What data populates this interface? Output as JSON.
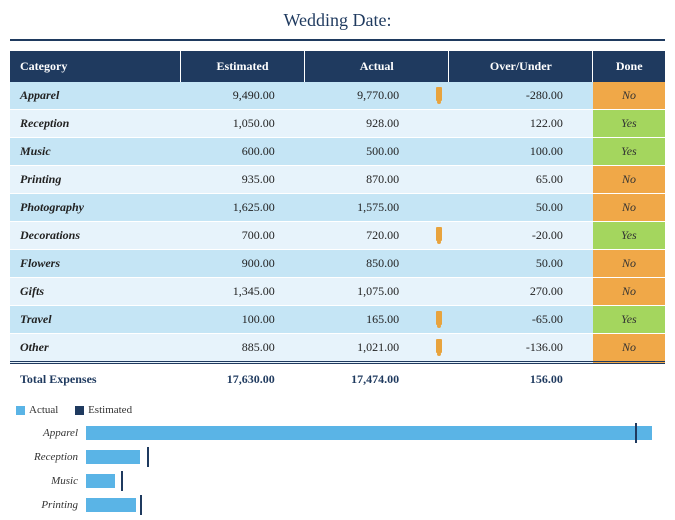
{
  "title": "Wedding Date:",
  "colors": {
    "header_bg": "#1f3a5f",
    "header_text": "#ffffff",
    "row_even": "#c5e5f5",
    "row_odd": "#e7f3fb",
    "done_yes": "#a4d65e",
    "done_no": "#f0a848",
    "rule": "#1f3a5f",
    "bar_actual": "#5ab4e6",
    "bar_estimated": "#1f3a5f",
    "background": "#ffffff",
    "flag": "#e8a33d"
  },
  "table": {
    "headers": {
      "category": "Category",
      "estimated": "Estimated",
      "actual": "Actual",
      "over_under": "Over/Under",
      "done": "Done"
    },
    "rows": [
      {
        "category": "Apparel",
        "estimated": "9,490.00",
        "actual": "9,770.00",
        "flag": true,
        "over_under": "-280.00",
        "done": "No",
        "est_n": 9490,
        "act_n": 9770
      },
      {
        "category": "Reception",
        "estimated": "1,050.00",
        "actual": "928.00",
        "flag": false,
        "over_under": "122.00",
        "done": "Yes",
        "est_n": 1050,
        "act_n": 928
      },
      {
        "category": "Music",
        "estimated": "600.00",
        "actual": "500.00",
        "flag": false,
        "over_under": "100.00",
        "done": "Yes",
        "est_n": 600,
        "act_n": 500
      },
      {
        "category": "Printing",
        "estimated": "935.00",
        "actual": "870.00",
        "flag": false,
        "over_under": "65.00",
        "done": "No",
        "est_n": 935,
        "act_n": 870
      },
      {
        "category": "Photography",
        "estimated": "1,625.00",
        "actual": "1,575.00",
        "flag": false,
        "over_under": "50.00",
        "done": "No",
        "est_n": 1625,
        "act_n": 1575
      },
      {
        "category": "Decorations",
        "estimated": "700.00",
        "actual": "720.00",
        "flag": true,
        "over_under": "-20.00",
        "done": "Yes",
        "est_n": 700,
        "act_n": 720
      },
      {
        "category": "Flowers",
        "estimated": "900.00",
        "actual": "850.00",
        "flag": false,
        "over_under": "50.00",
        "done": "No",
        "est_n": 900,
        "act_n": 850
      },
      {
        "category": "Gifts",
        "estimated": "1,345.00",
        "actual": "1,075.00",
        "flag": false,
        "over_under": "270.00",
        "done": "No",
        "est_n": 1345,
        "act_n": 1075
      },
      {
        "category": "Travel",
        "estimated": "100.00",
        "actual": "165.00",
        "flag": true,
        "over_under": "-65.00",
        "done": "Yes",
        "est_n": 100,
        "act_n": 165
      },
      {
        "category": "Other",
        "estimated": "885.00",
        "actual": "1,021.00",
        "flag": true,
        "over_under": "-136.00",
        "done": "No",
        "est_n": 885,
        "act_n": 1021
      }
    ],
    "totals": {
      "label": "Total Expenses",
      "estimated": "17,630.00",
      "actual": "17,474.00",
      "over_under": "156.00"
    }
  },
  "chart": {
    "type": "bar",
    "legend": {
      "actual": "Actual",
      "estimated": "Estimated"
    },
    "visible_rows": 4,
    "x_max": 10000,
    "bar_fill": "#5ab4e6",
    "tick_fill": "#1f3a5f",
    "label_fontsize": 11,
    "label_style": "italic"
  }
}
